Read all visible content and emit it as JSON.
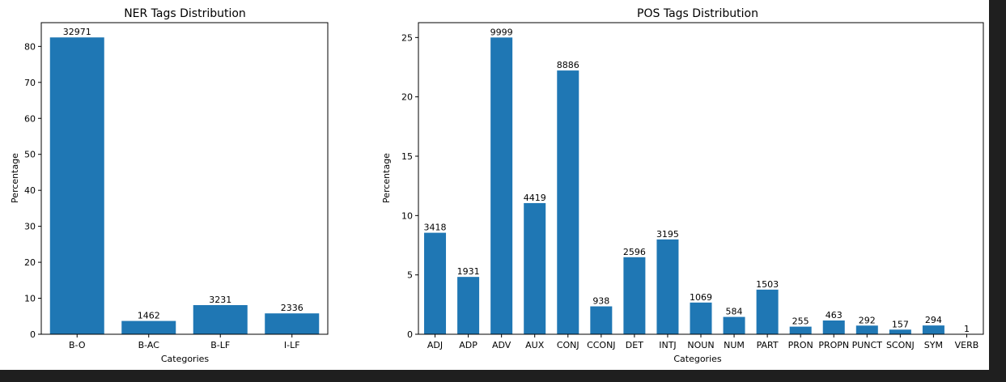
{
  "chart_data": [
    {
      "type": "bar",
      "title": "NER Tags Distribution",
      "xlabel": "Categories",
      "ylabel": "Percentage",
      "ylim": [
        0,
        86.6
      ],
      "yticks": [
        0,
        10,
        20,
        30,
        40,
        50,
        60,
        70,
        80
      ],
      "categories": [
        "B-O",
        "B-AC",
        "B-LF",
        "I-LF"
      ],
      "values": [
        82.5,
        3.7,
        8.1,
        5.8
      ],
      "labels": [
        "32971",
        "1462",
        "3231",
        "2336"
      ],
      "color": "#1f77b4"
    },
    {
      "type": "bar",
      "title": "POS Tags Distribution",
      "xlabel": "Categories",
      "ylabel": "Percentage",
      "ylim": [
        0,
        26.25
      ],
      "yticks": [
        0,
        5,
        10,
        15,
        20,
        25
      ],
      "categories": [
        "ADJ",
        "ADP",
        "ADV",
        "AUX",
        "CONJ",
        "CCONJ",
        "DET",
        "INTJ",
        "NOUN",
        "NUM",
        "PART",
        "PRON",
        "PROPN",
        "PUNCT",
        "SCONJ",
        "SYM",
        "VERB"
      ],
      "values": [
        8.55,
        4.83,
        25.0,
        11.05,
        22.22,
        2.35,
        6.49,
        7.99,
        2.67,
        1.46,
        3.76,
        0.64,
        1.16,
        0.73,
        0.39,
        0.74,
        0.0
      ],
      "labels": [
        "3418",
        "1931",
        "9999",
        "4419",
        "8886",
        "938",
        "2596",
        "3195",
        "1069",
        "584",
        "1503",
        "255",
        "463",
        "292",
        "157",
        "294",
        "1"
      ],
      "color": "#1f77b4"
    }
  ]
}
